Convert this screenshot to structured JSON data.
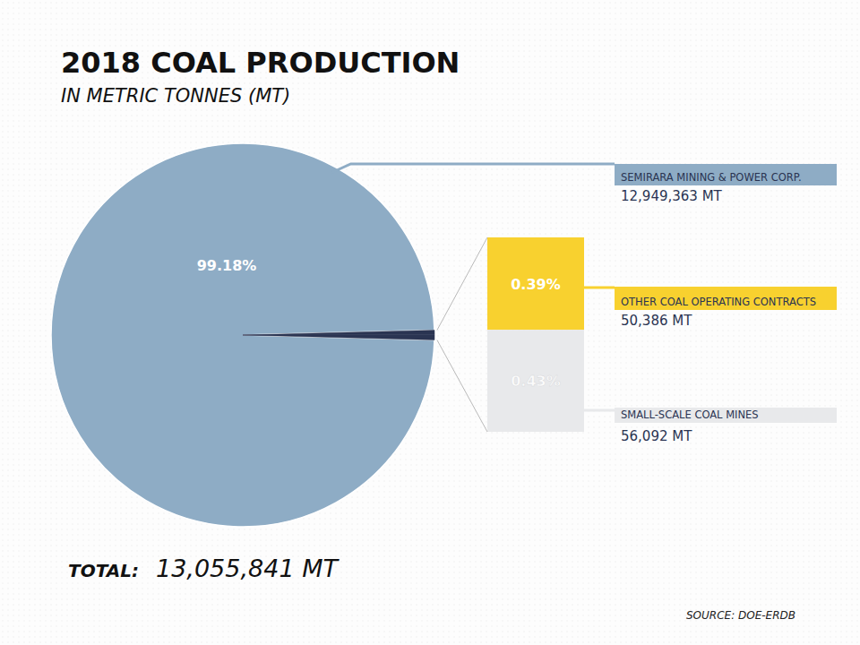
{
  "chart_data": {
    "type": "pie",
    "title": "2018 COAL PRODUCTION",
    "subtitle": "IN METRIC TONNES (MT)",
    "categories": [
      "SEMIRARA MINING & POWER CORP.",
      "OTHER COAL OPERATING CONTRACTS",
      "SMALL-SCALE COAL MINES"
    ],
    "values": [
      12949363,
      50386,
      56092
    ],
    "value_labels": [
      "12,949,363 MT",
      "50,386 MT",
      "56,092 MT"
    ],
    "percentages": [
      99.18,
      0.39,
      0.43
    ],
    "percentage_labels": [
      "99.18%",
      "0.39%",
      "0.43%"
    ],
    "colors": [
      "#8eacc5",
      "#f8d12f",
      "#e8e9eb"
    ],
    "data_labels": true,
    "total": {
      "label": "TOTAL:",
      "value": 13055841,
      "value_label": "13,055,841 MT"
    },
    "source": "SOURCE: DOE-ERDB"
  }
}
